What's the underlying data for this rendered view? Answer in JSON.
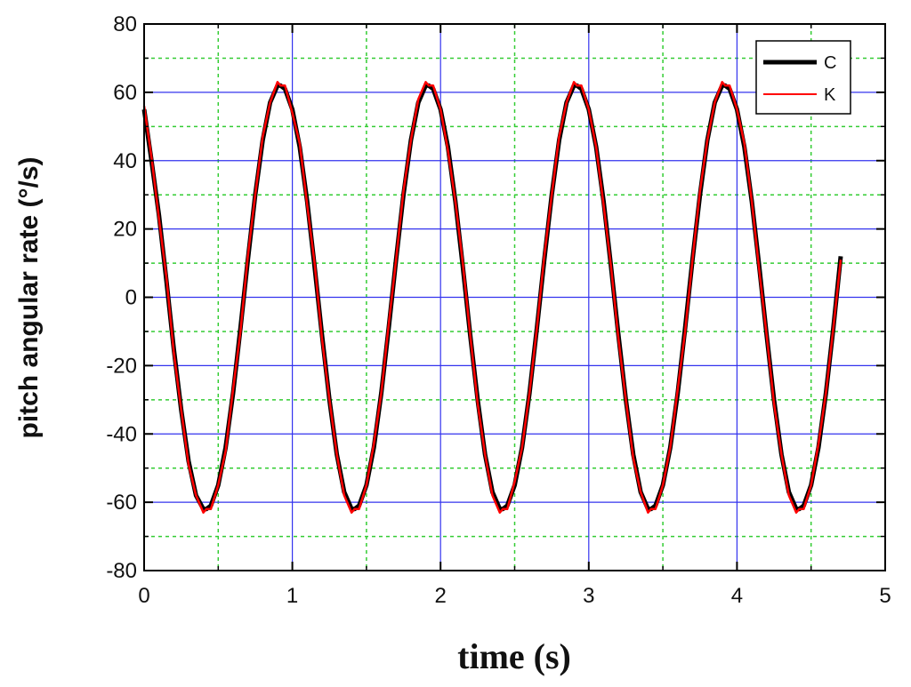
{
  "chart_data": {
    "type": "line",
    "title": "",
    "xlabel": "time (s)",
    "ylabel": "pitch angular rate (°/s)",
    "xlim": [
      0,
      5
    ],
    "ylim": [
      -80,
      80
    ],
    "x_ticks": [
      "0",
      "1",
      "2",
      "3",
      "4",
      "5"
    ],
    "y_ticks": [
      "-80",
      "-60",
      "-40",
      "-20",
      "0",
      "20",
      "40",
      "60",
      "80"
    ],
    "grid": true,
    "legend_position": "top-right",
    "series": [
      {
        "name": "C",
        "color": "#000000",
        "x": [
          0,
          0.05,
          0.1,
          0.15,
          0.2,
          0.25,
          0.3,
          0.35,
          0.4,
          0.42,
          0.45,
          0.5,
          0.55,
          0.6,
          0.65,
          0.7,
          0.75,
          0.8,
          0.85,
          0.9,
          0.92,
          0.95,
          1.0,
          1.05,
          1.1,
          1.15,
          1.2,
          1.25,
          1.3,
          1.35,
          1.4,
          1.42,
          1.45,
          1.5,
          1.55,
          1.6,
          1.65,
          1.7,
          1.75,
          1.8,
          1.85,
          1.9,
          1.92,
          1.95,
          2.0,
          2.05,
          2.1,
          2.15,
          2.2,
          2.25,
          2.3,
          2.35,
          2.4,
          2.42,
          2.45,
          2.5,
          2.55,
          2.6,
          2.65,
          2.7,
          2.75,
          2.8,
          2.85,
          2.9,
          2.92,
          2.95,
          3.0,
          3.05,
          3.1,
          3.15,
          3.2,
          3.25,
          3.3,
          3.35,
          3.4,
          3.42,
          3.45,
          3.5,
          3.55,
          3.6,
          3.65,
          3.7,
          3.75,
          3.8,
          3.85,
          3.9,
          3.92,
          3.95,
          4.0,
          4.05,
          4.1,
          4.15,
          4.2,
          4.25,
          4.3,
          4.35,
          4.4,
          4.42,
          4.45,
          4.5,
          4.55,
          4.6,
          4.65,
          4.7
        ],
        "y": [
          55,
          40,
          24,
          5,
          -15,
          -33,
          -48,
          -58,
          -62,
          -62,
          -61,
          -55,
          -44,
          -28,
          -9,
          11,
          30,
          46,
          57,
          62,
          62,
          61,
          55,
          44,
          28,
          9,
          -11,
          -30,
          -46,
          -57,
          -62,
          -62,
          -61,
          -55,
          -44,
          -28,
          -9,
          11,
          30,
          46,
          57,
          62,
          62,
          61,
          55,
          44,
          28,
          9,
          -11,
          -30,
          -46,
          -57,
          -62,
          -62,
          -61,
          -55,
          -44,
          -28,
          -9,
          11,
          30,
          46,
          57,
          62,
          62,
          61,
          55,
          44,
          28,
          9,
          -11,
          -30,
          -46,
          -57,
          -62,
          -62,
          -61,
          -55,
          -44,
          -28,
          -9,
          11,
          30,
          46,
          57,
          62,
          62,
          61,
          55,
          44,
          28,
          9,
          -11,
          -30,
          -46,
          -57,
          -62,
          -62,
          -61,
          -55,
          -44,
          -28,
          -9,
          12
        ]
      },
      {
        "name": "K",
        "color": "#ff0000",
        "x": [
          0,
          0.05,
          0.1,
          0.15,
          0.2,
          0.25,
          0.3,
          0.35,
          0.4,
          0.42,
          0.45,
          0.5,
          0.55,
          0.6,
          0.65,
          0.7,
          0.75,
          0.8,
          0.85,
          0.9,
          0.92,
          0.95,
          1.0,
          1.05,
          1.1,
          1.15,
          1.2,
          1.25,
          1.3,
          1.35,
          1.4,
          1.42,
          1.45,
          1.5,
          1.55,
          1.6,
          1.65,
          1.7,
          1.75,
          1.8,
          1.85,
          1.9,
          1.92,
          1.95,
          2.0,
          2.05,
          2.1,
          2.15,
          2.2,
          2.25,
          2.3,
          2.35,
          2.4,
          2.42,
          2.45,
          2.5,
          2.55,
          2.6,
          2.65,
          2.7,
          2.75,
          2.8,
          2.85,
          2.9,
          2.92,
          2.95,
          3.0,
          3.05,
          3.1,
          3.15,
          3.2,
          3.25,
          3.3,
          3.35,
          3.4,
          3.42,
          3.45,
          3.5,
          3.55,
          3.6,
          3.65,
          3.7,
          3.75,
          3.8,
          3.85,
          3.9,
          3.92,
          3.95,
          4.0,
          4.05,
          4.1,
          4.15,
          4.2,
          4.25,
          4.3,
          4.35,
          4.4,
          4.42,
          4.45,
          4.5,
          4.55,
          4.6,
          4.65,
          4.7
        ],
        "y": [
          56,
          41,
          23,
          6,
          -16,
          -33,
          -49,
          -58,
          -63,
          -62,
          -62,
          -55,
          -45,
          -27,
          -10,
          12,
          30,
          47,
          57,
          63,
          62,
          62,
          54,
          45,
          27,
          10,
          -12,
          -30,
          -46,
          -58,
          -63,
          -62,
          -62,
          -55,
          -43,
          -28,
          -8,
          11,
          31,
          46,
          58,
          63,
          62,
          62,
          55,
          43,
          28,
          10,
          -11,
          -31,
          -46,
          -58,
          -63,
          -62,
          -62,
          -54,
          -44,
          -28,
          -9,
          12,
          30,
          47,
          57,
          63,
          62,
          62,
          55,
          44,
          27,
          9,
          -12,
          -30,
          -47,
          -57,
          -63,
          -62,
          -62,
          -55,
          -44,
          -27,
          -10,
          11,
          31,
          46,
          57,
          63,
          62,
          62,
          55,
          45,
          28,
          8,
          -11,
          -31,
          -46,
          -58,
          -63,
          -62,
          -62,
          -55,
          -43,
          -28,
          -9,
          11
        ]
      }
    ]
  }
}
